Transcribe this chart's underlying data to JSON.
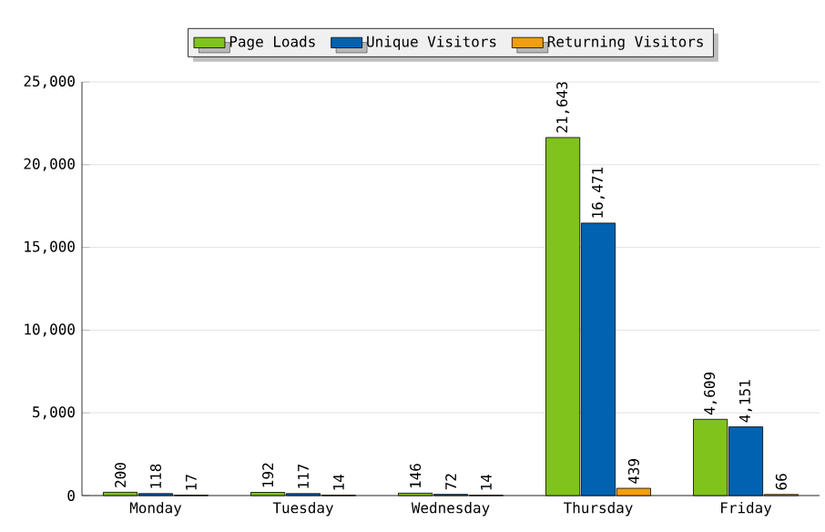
{
  "chart_data": {
    "type": "bar",
    "categories": [
      "Monday",
      "Tuesday",
      "Wednesday",
      "Thursday",
      "Friday"
    ],
    "series": [
      {
        "name": "Page Loads",
        "color": "#80c31c",
        "values": [
          200,
          192,
          146,
          21643,
          4609
        ],
        "value_labels": [
          "200",
          "192",
          "146",
          "21,643",
          "4,609"
        ]
      },
      {
        "name": "Unique Visitors",
        "color": "#0062b0",
        "values": [
          118,
          117,
          72,
          16471,
          4151
        ],
        "value_labels": [
          "118",
          "117",
          "72",
          "16,471",
          "4,151"
        ]
      },
      {
        "name": "Returning Visitors",
        "color": "#f29e0f",
        "values": [
          17,
          14,
          14,
          439,
          66
        ],
        "value_labels": [
          "17",
          "14",
          "14",
          "439",
          "66"
        ]
      }
    ],
    "ylim": [
      0,
      25000
    ],
    "yticks": [
      0,
      {
        "value": 5000,
        "label": "5,000"
      },
      {
        "value": 10000,
        "label": "10,000"
      },
      {
        "value": 15000,
        "label": "15,000"
      },
      {
        "value": 20000,
        "label": "20,000"
      },
      {
        "value": 25000,
        "label": "25,000"
      }
    ],
    "grid": "y",
    "legend": "top"
  }
}
